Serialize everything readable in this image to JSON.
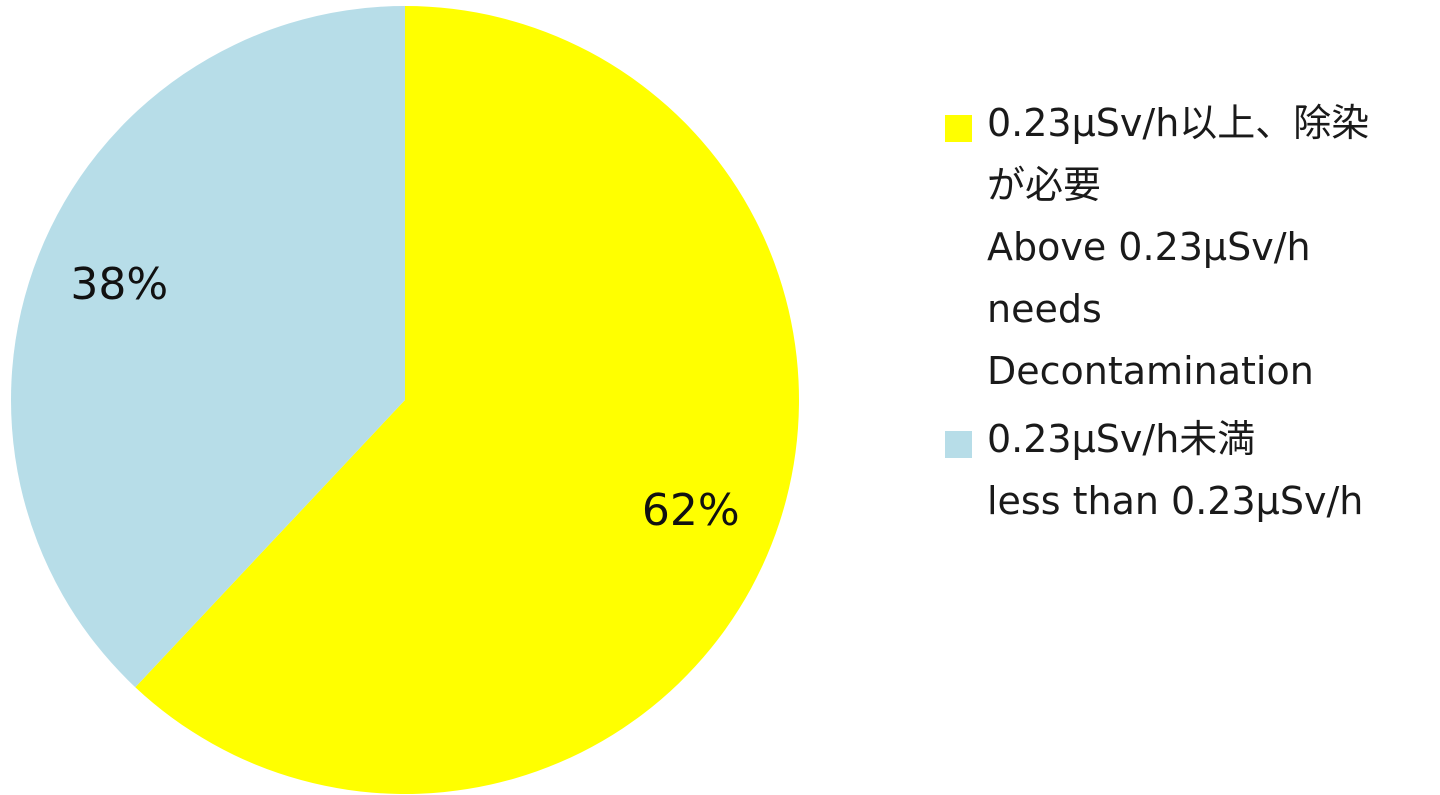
{
  "chart_data": {
    "type": "pie",
    "slices": [
      {
        "label": "0.23μSv/h以上、除染が必要\nAbove 0.23μSv/h needs Decontamination",
        "legend_text": "0.23μSv/h以上、除染\nが必要\nAbove 0.23μSv/h\nneeds\nDecontamination",
        "value": 62,
        "value_label": "62%",
        "color": "#FFFF00"
      },
      {
        "label": "0.23μSv/h未満\nless than 0.23μSv/h",
        "legend_text": "0.23μSv/h未満\nless than 0.23μSv/h",
        "value": 38,
        "value_label": "38%",
        "color": "#B7DDE8"
      }
    ],
    "legend_placement": "right"
  }
}
